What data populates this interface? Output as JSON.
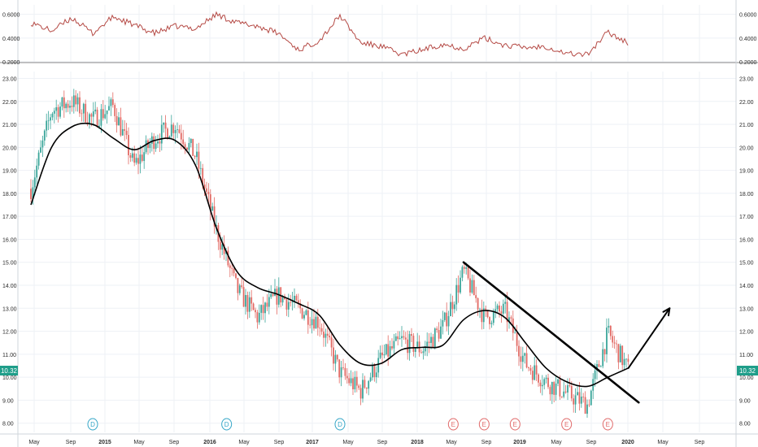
{
  "colors": {
    "background": "#ffffff",
    "grid": "#eef1f6",
    "axis_text": "#2b2b2b",
    "border": "#888888",
    "up_candle": "#3aa59a",
    "down_candle": "#e26a64",
    "indicator_line": "#b54a45",
    "moving_average": "#000000",
    "price_tag": "#1f9e8a",
    "dividend_marker": "#35a6c7",
    "earnings_marker": "#e06a6a"
  },
  "price_tag": {
    "left": "10.32",
    "right": "10.32"
  },
  "chart_data": [
    {
      "type": "line",
      "title": "",
      "ylim": [
        0.2,
        0.68
      ],
      "y_ticks": [
        {
          "value": 0.6,
          "label": "0.6000"
        },
        {
          "value": 0.4,
          "label": "0.4000"
        },
        {
          "value": 0.2,
          "label": "0.2000"
        }
      ],
      "series": [
        {
          "x": [
            "2014-03",
            "2014-05",
            "2014-07",
            "2014-09",
            "2014-11",
            "2015-01",
            "2015-03",
            "2015-05",
            "2015-07",
            "2015-09",
            "2015-11",
            "2016-01",
            "2016-03",
            "2016-05",
            "2016-07",
            "2016-09",
            "2016-11",
            "2017-01",
            "2017-03",
            "2017-05",
            "2017-07",
            "2017-09",
            "2017-11",
            "2018-01",
            "2018-03",
            "2018-05",
            "2018-07",
            "2018-09",
            "2018-11",
            "2019-01"
          ],
          "values": [
            0.53,
            0.46,
            0.57,
            0.44,
            0.58,
            0.51,
            0.44,
            0.5,
            0.48,
            0.6,
            0.53,
            0.5,
            0.44,
            0.3,
            0.38,
            0.59,
            0.36,
            0.33,
            0.26,
            0.3,
            0.35,
            0.31,
            0.4,
            0.34,
            0.32,
            0.33,
            0.27,
            0.26,
            0.45,
            0.36
          ]
        }
      ],
      "grid": true
    },
    {
      "type": "candlestick",
      "title": "",
      "ylim": [
        7.6,
        23.3
      ],
      "y_ticks": [
        "8.00",
        "9.00",
        "10.00",
        "11.00",
        "12.00",
        "13.00",
        "14.00",
        "15.00",
        "16.00",
        "17.00",
        "18.00",
        "19.00",
        "20.00",
        "21.00",
        "22.00",
        "23.00"
      ],
      "x_ticks": [
        "May",
        "Sep",
        "2015",
        "May",
        "Sep",
        "2016",
        "May",
        "Sep",
        "2017",
        "May",
        "Sep",
        "2018",
        "May",
        "Sep",
        "2019",
        "May",
        "Sep",
        "2020",
        "May",
        "Sep"
      ],
      "grid": true,
      "series": [
        {
          "name": "",
          "x": [
            "2014-03",
            "2014-05",
            "2014-07",
            "2014-09",
            "2014-11",
            "2015-01",
            "2015-03",
            "2015-05",
            "2015-07",
            "2015-09",
            "2015-11",
            "2016-01",
            "2016-03",
            "2016-05",
            "2016-07",
            "2016-09",
            "2016-11",
            "2017-01",
            "2017-03",
            "2017-05",
            "2017-07",
            "2017-09",
            "2017-11",
            "2018-01",
            "2018-03",
            "2018-05",
            "2018-07",
            "2018-09",
            "2018-11",
            "2019-01"
          ],
          "close": [
            18.2,
            21.6,
            22.0,
            21.2,
            21.8,
            19.2,
            20.4,
            21.0,
            19.6,
            16.4,
            13.8,
            12.6,
            13.6,
            13.0,
            12.4,
            10.2,
            9.4,
            10.8,
            11.6,
            11.2,
            12.2,
            14.6,
            12.6,
            12.9,
            10.6,
            9.8,
            9.3,
            8.8,
            11.9,
            10.32
          ]
        },
        {
          "name": "",
          "type": "line",
          "x": [
            "2014-03",
            "2014-05",
            "2014-07",
            "2014-09",
            "2014-11",
            "2015-01",
            "2015-03",
            "2015-05",
            "2015-07",
            "2015-09",
            "2015-11",
            "2016-01",
            "2016-03",
            "2016-05",
            "2016-07",
            "2016-09",
            "2016-11",
            "2017-01",
            "2017-03",
            "2017-05",
            "2017-07",
            "2017-09",
            "2017-11",
            "2018-01",
            "2018-03",
            "2018-05",
            "2018-07",
            "2018-09",
            "2018-11",
            "2019-01"
          ],
          "values": [
            17.5,
            20.0,
            20.9,
            21.0,
            20.4,
            19.9,
            20.3,
            20.3,
            19.2,
            16.5,
            14.6,
            13.9,
            13.6,
            13.2,
            12.7,
            11.4,
            10.6,
            10.6,
            11.2,
            11.3,
            11.4,
            12.5,
            12.9,
            12.6,
            11.5,
            10.4,
            9.8,
            9.6,
            10.0,
            10.4
          ]
        }
      ],
      "drawings": {
        "trend_line": {
          "x": [
            "2017-09",
            "2019-02"
          ],
          "y": [
            15.0,
            8.9
          ]
        },
        "arrow": {
          "x": [
            "2019-01",
            "2019-05"
          ],
          "y": [
            10.4,
            13.0
          ]
        }
      },
      "events": [
        {
          "label": "D",
          "x": "2014-09",
          "kind": "dividend"
        },
        {
          "label": "D",
          "x": "2015-10",
          "kind": "dividend"
        },
        {
          "label": "D",
          "x": "2016-09",
          "kind": "dividend"
        },
        {
          "label": "E",
          "x": "2017-08",
          "kind": "earnings"
        },
        {
          "label": "E",
          "x": "2017-11",
          "kind": "earnings"
        },
        {
          "label": "E",
          "x": "2018-02",
          "kind": "earnings"
        },
        {
          "label": "E",
          "x": "2018-07",
          "kind": "earnings"
        },
        {
          "label": "E",
          "x": "2018-11",
          "kind": "earnings"
        }
      ]
    }
  ]
}
